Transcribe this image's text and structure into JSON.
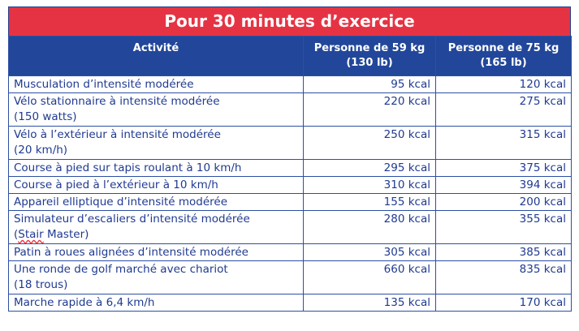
{
  "title": "Pour 30 minutes d’exercice",
  "headers": {
    "activity": "Activité",
    "p59_line1": "Personne de 59 kg",
    "p59_line2": "(130 lb)",
    "p75_line1": "Personne de 75 kg",
    "p75_line2": "(165 lb)"
  },
  "rows": [
    {
      "activity": "Musculation d’intensité modérée",
      "activity2": "",
      "kcal59": "95 kcal",
      "kcal75": "120 kcal"
    },
    {
      "activity": "Vélo stationnaire à intensité modérée",
      "activity2": "(150 watts)",
      "kcal59": "220 kcal",
      "kcal75": "275 kcal"
    },
    {
      "activity": "Vélo à l’extérieur à intensité modérée",
      "activity2": "(20 km/h)",
      "kcal59": "250 kcal",
      "kcal75": "315 kcal"
    },
    {
      "activity": "Course à pied sur tapis roulant à 10 km/h",
      "activity2": "",
      "kcal59": "295 kcal",
      "kcal75": "375 kcal"
    },
    {
      "activity": "Course à pied à l’extérieur à 10 km/h",
      "activity2": "",
      "kcal59": "310 kcal",
      "kcal75": "394 kcal"
    },
    {
      "activity": "Appareil elliptique d’intensité modérée",
      "activity2": "",
      "kcal59": "155 kcal",
      "kcal75": "200 kcal"
    },
    {
      "activity": "Simulateur d’escaliers d’intensité modérée",
      "activity2_pre": "(",
      "activity2_wavy": "Stair",
      "activity2_post": " Master)",
      "kcal59": "280 kcal",
      "kcal75": "355 kcal"
    },
    {
      "activity": "Patin à roues alignées d’intensité modérée",
      "activity2": "",
      "kcal59": "305 kcal",
      "kcal75": "385 kcal"
    },
    {
      "activity": "Une ronde de golf marché avec chariot",
      "activity2": "(18 trous)",
      "kcal59": "660 kcal",
      "kcal75": "835 kcal"
    },
    {
      "activity": "Marche rapide à 6,4 km/h",
      "activity2": "",
      "kcal59": "135 kcal",
      "kcal75": "170 kcal"
    }
  ],
  "colors": {
    "title_bg": "#e63344",
    "header_bg": "#22479a",
    "text": "#1f3a91",
    "border": "#2d4fa3"
  }
}
